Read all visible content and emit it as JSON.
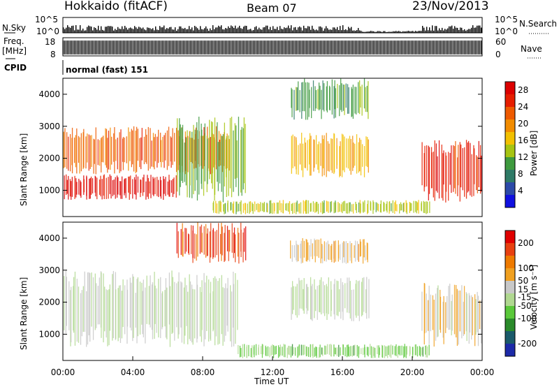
{
  "header": {
    "station": "Hokkaido (fitACF)",
    "beam": "Beam 07",
    "date": "23/Nov/2013"
  },
  "summary": {
    "nsky_label": "N.Sky",
    "nsearch_label": "N.Search",
    "nsky_ticks": [
      "10^5",
      "10^0"
    ],
    "nsearch_ticks": [
      "10^5",
      "10^0"
    ],
    "freq_label_line1": "Freq.",
    "freq_label_line2": "[MHz]",
    "freq_ticks": [
      "18",
      "8"
    ],
    "nave_label": "Nave",
    "nave_ticks": [
      "60",
      "0"
    ],
    "cpid_label": "CPID",
    "cpid_value": "normal (fast) 151"
  },
  "colors": {
    "power_scale": [
      "#1010e0",
      "#2c4aa8",
      "#2e7a66",
      "#3e9a3e",
      "#a6c412",
      "#f2c000",
      "#f28c00",
      "#ee5a00",
      "#e61e00",
      "#dc0000"
    ],
    "velocity_scale": [
      "#1c2aa8",
      "#1a5a6a",
      "#2a8a2a",
      "#5ac83a",
      "#b0d890",
      "#c8c8c8",
      "#f0a020",
      "#ee7a00",
      "#e84010",
      "#e00000"
    ]
  },
  "chart_data": [
    {
      "type": "heatmap",
      "panel": "power",
      "ylabel": "Slant Range [km]",
      "y_ticks": [
        "4000",
        "3000",
        "2000",
        "1000"
      ],
      "ylim": [
        180,
        4500
      ],
      "colorbar_label": "Power [dB]",
      "colorbar_ticks": [
        "28",
        "24",
        "20",
        "16",
        "12",
        "8",
        "4"
      ],
      "colorbar_range": [
        0,
        30
      ],
      "echo_regions": [
        {
          "t": [
            0,
            6.5
          ],
          "range_km": [
            700,
            1500
          ],
          "value": 28
        },
        {
          "t": [
            0,
            9.5
          ],
          "range_km": [
            1500,
            3000
          ],
          "value": 22
        },
        {
          "t": [
            6.5,
            10.5
          ],
          "range_km": [
            600,
            3300
          ],
          "value": 12
        },
        {
          "t": [
            13,
            17.5
          ],
          "range_km": [
            3200,
            4500
          ],
          "value": 10
        },
        {
          "t": [
            13,
            17.5
          ],
          "range_km": [
            1400,
            2800
          ],
          "value": 18
        },
        {
          "t": [
            8.5,
            21
          ],
          "range_km": [
            250,
            700
          ],
          "value": 14
        },
        {
          "t": [
            20.5,
            24
          ],
          "range_km": [
            600,
            2600
          ],
          "value": 26
        }
      ]
    },
    {
      "type": "heatmap",
      "panel": "velocity",
      "ylabel": "Slant Range [km]",
      "y_ticks": [
        "4000",
        "3000",
        "2000",
        "1000"
      ],
      "ylim": [
        180,
        4500
      ],
      "colorbar_label": "Velocity [m s⁻¹]",
      "colorbar_ticks": [
        "200",
        "100",
        "50",
        "15",
        "-15",
        "-50",
        "-100",
        "-200"
      ],
      "colorbar_range": [
        -250,
        250
      ],
      "xlabel": "Time UT",
      "x_ticks": [
        "00:00",
        "04:00",
        "08:00",
        "12:00",
        "16:00",
        "20:00",
        "00:00"
      ],
      "xlim": [
        0,
        24
      ],
      "echo_regions": [
        {
          "t": [
            0,
            10
          ],
          "range_km": [
            600,
            3000
          ],
          "value": 0
        },
        {
          "t": [
            6.5,
            10.5
          ],
          "range_km": [
            3200,
            4500
          ],
          "value": 180
        },
        {
          "t": [
            13,
            17.5
          ],
          "range_km": [
            3200,
            4000
          ],
          "value": 60
        },
        {
          "t": [
            13,
            17.5
          ],
          "range_km": [
            1400,
            2800
          ],
          "value": 0
        },
        {
          "t": [
            10,
            21
          ],
          "range_km": [
            250,
            700
          ],
          "value": -60
        },
        {
          "t": [
            20.5,
            24
          ],
          "range_km": [
            600,
            2600
          ],
          "value": 40
        }
      ]
    }
  ]
}
